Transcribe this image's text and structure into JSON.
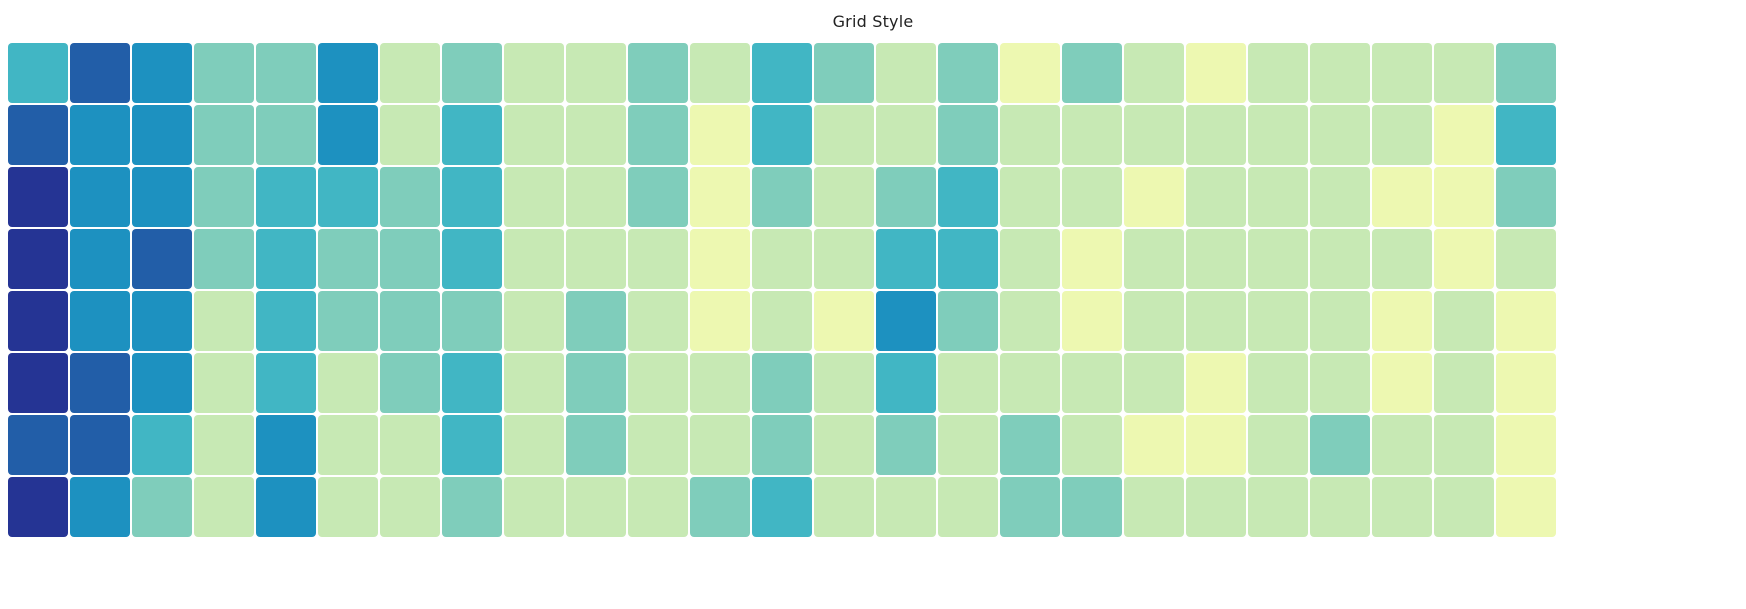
{
  "chart_data": {
    "type": "heatmap",
    "title": "Grid Style",
    "rows": 8,
    "cols": 25,
    "palette": [
      "#edf8b1",
      "#c7e9b4",
      "#7fcdbb",
      "#41b6c4",
      "#1d91c0",
      "#225ea8",
      "#253494"
    ],
    "values": [
      [
        3,
        5,
        4,
        2,
        2,
        4,
        1,
        2,
        1,
        1,
        2,
        1,
        3,
        2,
        1,
        2,
        0,
        2,
        1,
        0,
        1,
        1,
        1,
        1,
        2
      ],
      [
        5,
        4,
        4,
        2,
        2,
        4,
        1,
        3,
        1,
        1,
        2,
        0,
        3,
        1,
        1,
        2,
        1,
        1,
        1,
        1,
        1,
        1,
        1,
        0,
        3
      ],
      [
        6,
        4,
        4,
        2,
        3,
        3,
        2,
        3,
        1,
        1,
        2,
        0,
        2,
        1,
        2,
        3,
        1,
        1,
        0,
        1,
        1,
        1,
        0,
        0,
        2
      ],
      [
        6,
        4,
        5,
        2,
        3,
        2,
        2,
        3,
        1,
        1,
        1,
        0,
        1,
        1,
        3,
        3,
        1,
        0,
        1,
        1,
        1,
        1,
        1,
        0,
        1
      ],
      [
        6,
        4,
        4,
        1,
        3,
        2,
        2,
        2,
        1,
        2,
        1,
        0,
        1,
        0,
        4,
        2,
        1,
        0,
        1,
        1,
        1,
        1,
        0,
        1,
        0
      ],
      [
        6,
        5,
        4,
        1,
        3,
        1,
        2,
        3,
        1,
        2,
        1,
        1,
        2,
        1,
        3,
        1,
        1,
        1,
        1,
        0,
        1,
        1,
        0,
        1,
        0
      ],
      [
        5,
        5,
        3,
        1,
        4,
        1,
        1,
        3,
        1,
        2,
        1,
        1,
        2,
        1,
        2,
        1,
        2,
        1,
        0,
        0,
        1,
        2,
        1,
        1,
        0
      ],
      [
        6,
        4,
        2,
        1,
        4,
        1,
        1,
        2,
        1,
        1,
        1,
        2,
        3,
        1,
        1,
        1,
        2,
        2,
        1,
        1,
        1,
        1,
        1,
        1,
        0
      ]
    ]
  }
}
